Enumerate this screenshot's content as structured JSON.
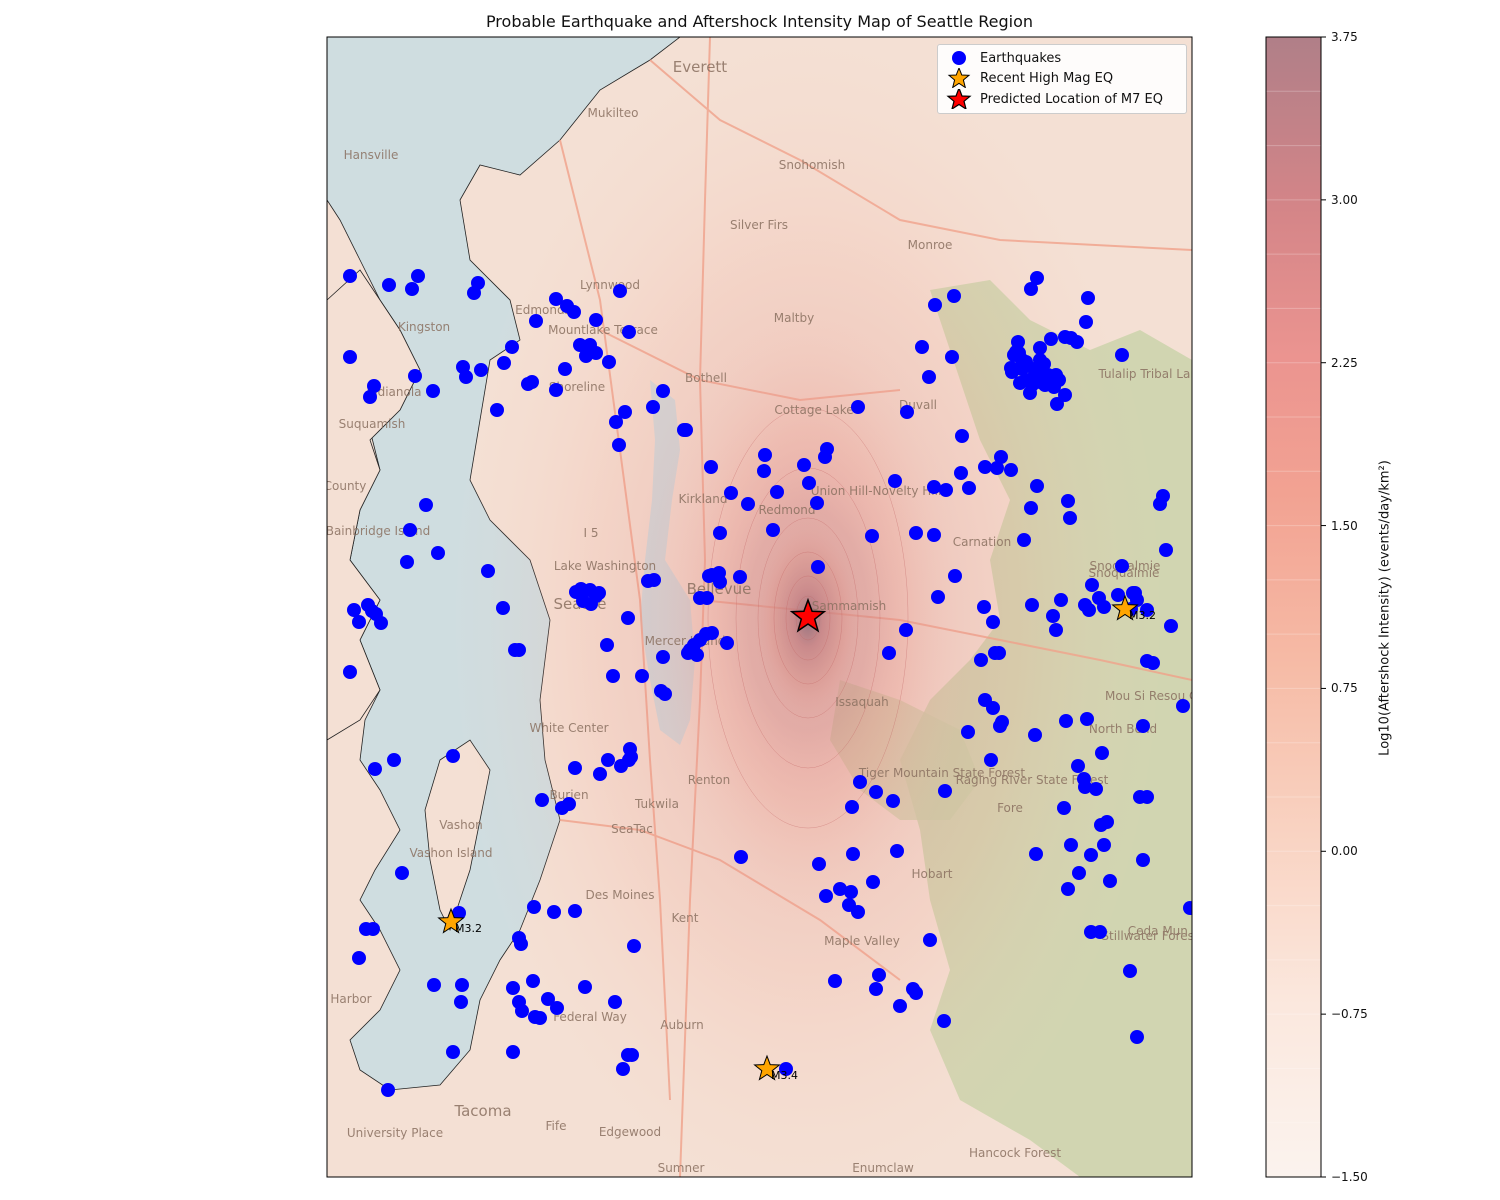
{
  "title": "Probable Earthquake and Aftershock Intensity Map of Seattle Region",
  "colors": {
    "earthquake": "#0000ff",
    "recent_high_mag": "#ffa500",
    "predicted_m7": "#ff0000",
    "water": "#cfdde0",
    "land": "#f4e0d4",
    "park": "#c8d2a8",
    "road": "#f0a088"
  },
  "legend": {
    "earthquakes": "Earthquakes",
    "recent_high_mag": "Recent High Mag EQ",
    "predicted_m7": "Predicted Location of M7 EQ"
  },
  "colorbar": {
    "label": "Log10(Aftershock Intensity) (events/day/km²)",
    "min": -1.5,
    "max": 3.75,
    "ticks": [
      "−1.50",
      "−0.75",
      "0.00",
      "0.75",
      "1.50",
      "2.25",
      "3.00",
      "3.75"
    ],
    "tick_values": [
      -1.5,
      -0.75,
      0.0,
      0.75,
      1.5,
      2.25,
      3.0,
      3.75
    ]
  },
  "places": [
    "Everett",
    "Mukilteo",
    "Hansville",
    "Snohomish",
    "Silver Firs",
    "Monroe",
    "Lynnwood",
    "Edmonds",
    "Mountlake Terrace",
    "Kingston",
    "Maltby",
    "Bothell",
    "Shoreline",
    "Indianola",
    "Suquamish",
    "Cottage Lake",
    "Duvall",
    "Kirkland",
    "Redmond",
    "Union Hill-Novelty Hill",
    "Bainbridge Island",
    "Carnation",
    "Lake Washington",
    "Seattle",
    "Bellevue",
    "Sammamish",
    "Mercer Island",
    "Issaquah",
    "Snoqualmie",
    "North Bend",
    "White Center",
    "Renton",
    "Burien",
    "Tiger Mountain State Forest",
    "Raging River State Forest",
    "Tukwila",
    "SeaTac",
    "Vashon",
    "Vashon Island",
    "Hobart",
    "Des Moines",
    "Kent",
    "Maple Valley",
    "Federal Way",
    "Auburn",
    "Tacoma",
    "University Place",
    "Fife",
    "Edgewood",
    "Sumner",
    "Enumclaw",
    "Hancock Forest",
    "Tulalip Tribal Land",
    "Stillwater Forest",
    "I 5",
    "Harbor",
    "County"
  ],
  "recent_eq_labels": [
    "M3.2",
    "M3.2",
    "M3.4"
  ],
  "extra_map_text": [
    "Mou Si Resou Conser Are",
    "Ceda Mun Wate",
    "Snoqualmie",
    "Fore"
  ]
}
